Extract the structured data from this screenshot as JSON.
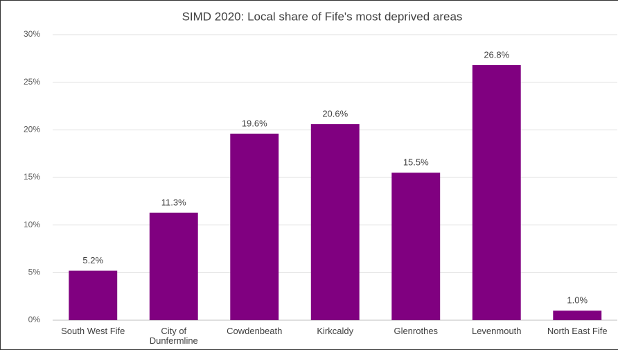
{
  "chart_data": {
    "type": "bar",
    "title": "SIMD 2020: Local share of Fife's most deprived areas",
    "categories": [
      "South West Fife",
      "City of Dunfermline",
      "Cowdenbeath",
      "Kirkcaldy",
      "Glenrothes",
      "Levenmouth",
      "North East Fife"
    ],
    "values": [
      5.2,
      11.3,
      19.6,
      20.6,
      15.5,
      26.8,
      1.0
    ],
    "value_labels": [
      "5.2%",
      "11.3%",
      "19.6%",
      "20.6%",
      "15.5%",
      "26.8%",
      "1.0%"
    ],
    "color": "#800080",
    "ylim": [
      0,
      30
    ],
    "yticks": [
      {
        "value": 0,
        "label": "0%"
      },
      {
        "value": 5,
        "label": "5%"
      },
      {
        "value": 10,
        "label": "10%"
      },
      {
        "value": 15,
        "label": "15%"
      },
      {
        "value": 20,
        "label": "20%"
      },
      {
        "value": 25,
        "label": "25%"
      },
      {
        "value": 30,
        "label": "30%"
      }
    ],
    "grid": true
  }
}
